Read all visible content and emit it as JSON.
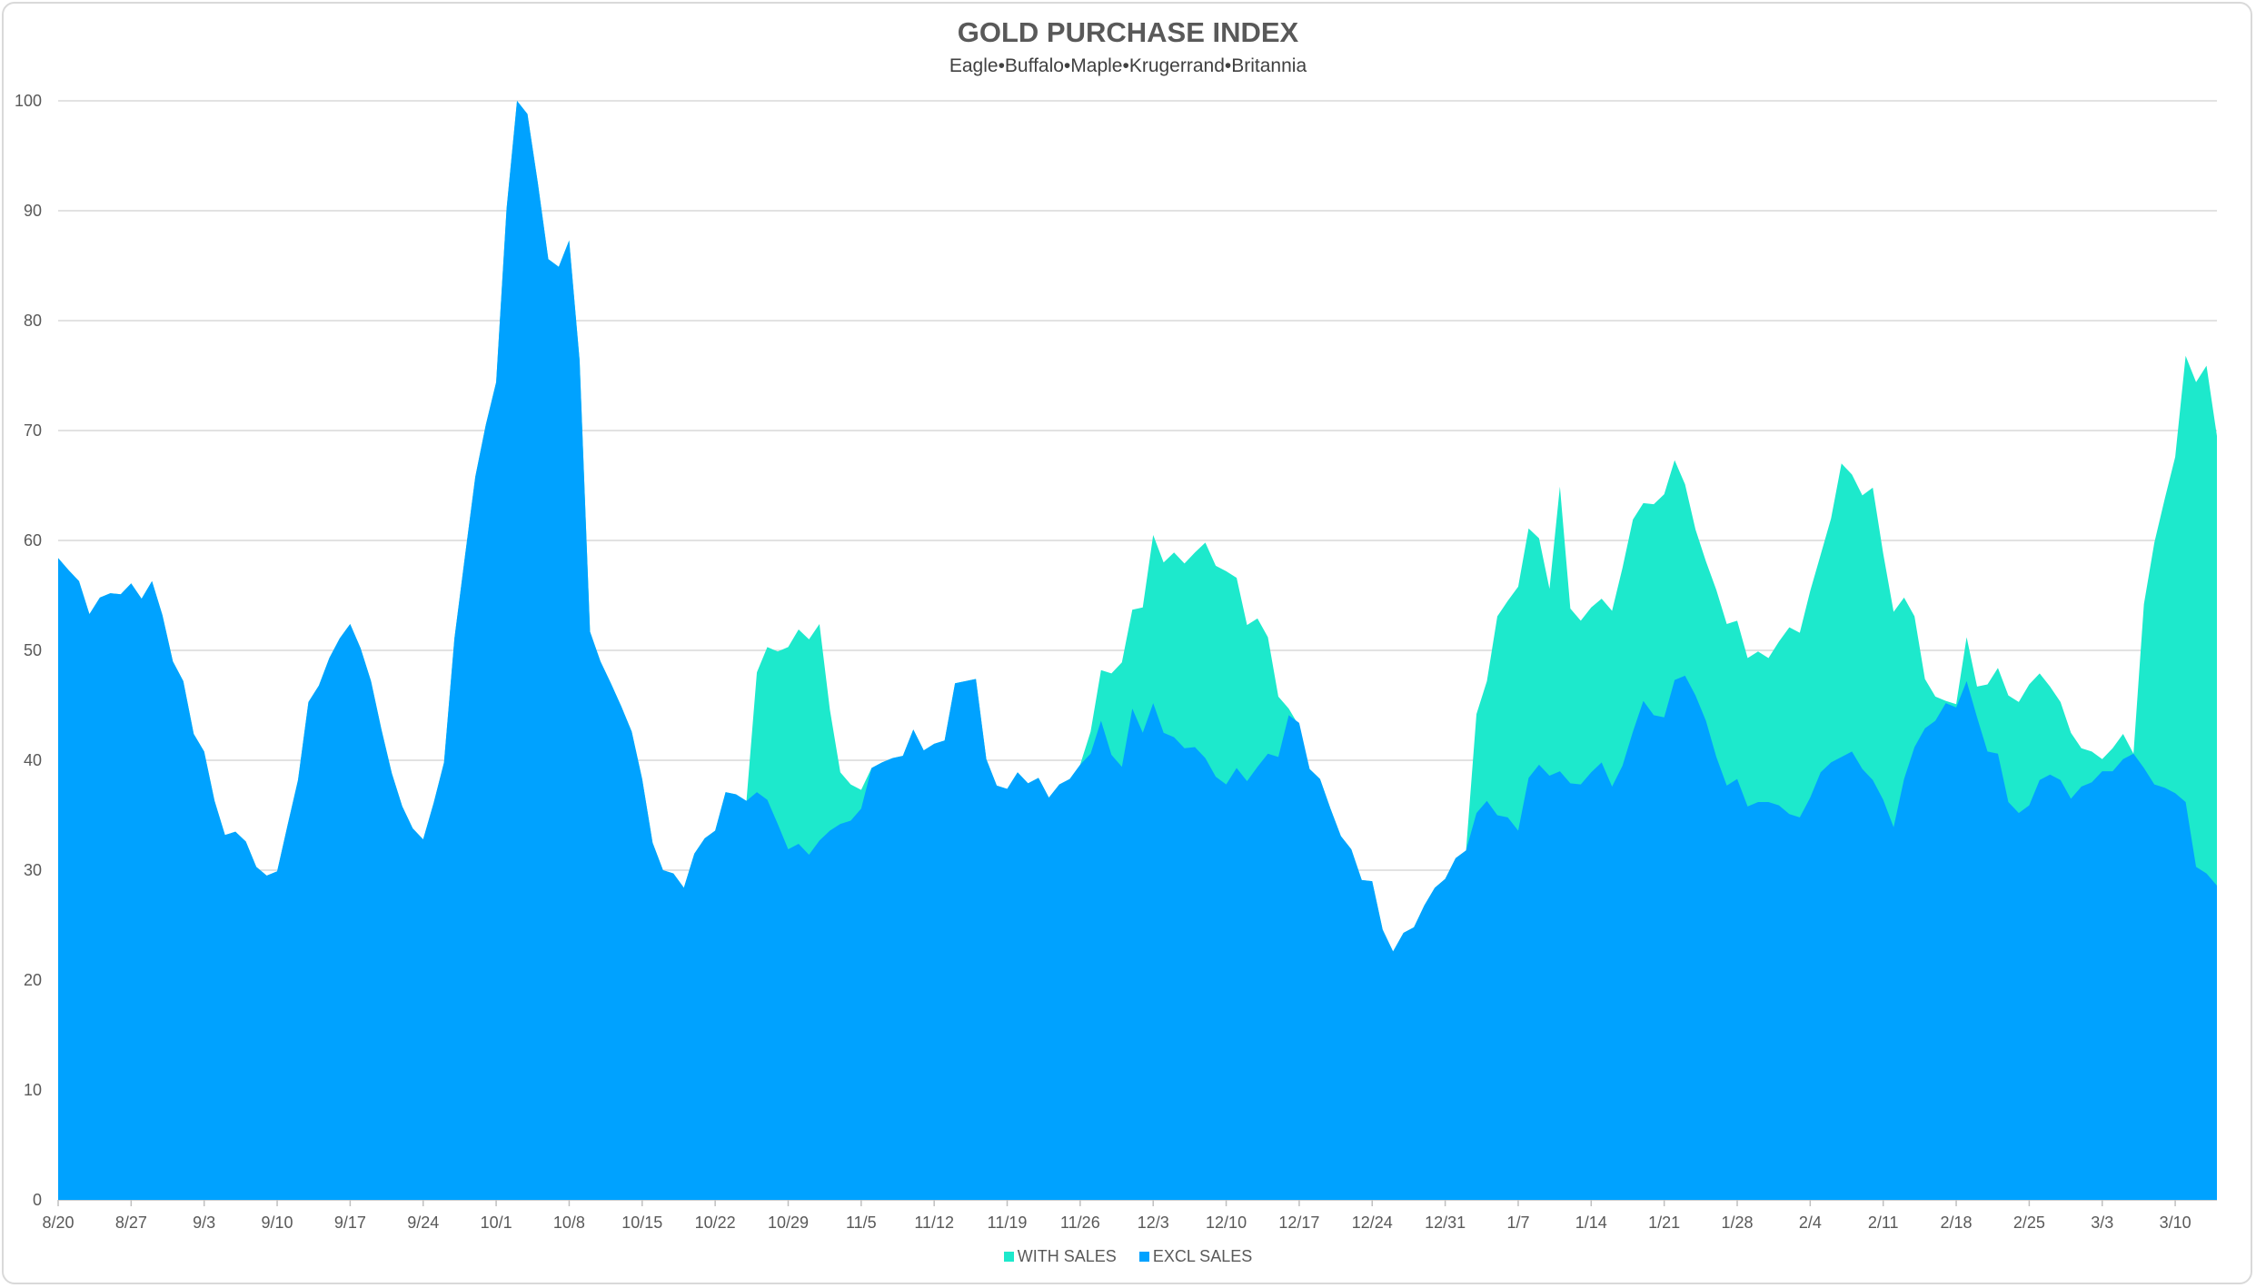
{
  "chart_data": {
    "type": "area",
    "title": "GOLD PURCHASE INDEX",
    "subtitle": "Eagle•Buffalo•Maple•Krugerrand•Britannia",
    "ylim": [
      0,
      100
    ],
    "y_ticks": [
      "0",
      "10",
      "20",
      "30",
      "40",
      "50",
      "60",
      "70",
      "80",
      "90",
      "100"
    ],
    "x_start": "8/20",
    "x_tick_labels": [
      "8/20",
      "8/27",
      "9/3",
      "9/10",
      "9/17",
      "9/24",
      "10/1",
      "10/8",
      "10/15",
      "10/22",
      "10/29",
      "11/5",
      "11/12",
      "11/19",
      "11/26",
      "12/3",
      "12/10",
      "12/17",
      "12/24",
      "12/31",
      "1/7",
      "1/14",
      "1/21",
      "1/28",
      "2/4",
      "2/11",
      "2/18",
      "2/25",
      "3/3",
      "3/10"
    ],
    "grid": true,
    "legend_position": "bottom",
    "series": [
      {
        "name": "WITH SALES",
        "color": "#1de9cc",
        "values": [
          58.4,
          57.3,
          56.3,
          53.3,
          54.8,
          55.2,
          55.1,
          56.1,
          54.7,
          56.3,
          53.2,
          49,
          47.2,
          42.4,
          40.8,
          36.3,
          33.2,
          33.5,
          32.6,
          30.3,
          29.5,
          29.9,
          34.1,
          38.2,
          45.3,
          46.8,
          49.3,
          51.1,
          52.4,
          50.2,
          47.2,
          42.8,
          38.8,
          35.8,
          33.8,
          32.8,
          36.1,
          39.8,
          51.1,
          58.5,
          65.8,
          70.5,
          74.4,
          90.2,
          100,
          98.8,
          92.5,
          85.6,
          84.9,
          87.3,
          76.4,
          51.7,
          49,
          47,
          44.9,
          42.6,
          38.3,
          32.5,
          30,
          29.7,
          28.4,
          31.5,
          32.9,
          33.6,
          37.1,
          36.9,
          36.3,
          48,
          50.3,
          49.9,
          50.3,
          51.9,
          51,
          52.4,
          44.6,
          38.9,
          37.8,
          37.3,
          39.3,
          39.8,
          40.2,
          40.4,
          42.8,
          40.9,
          41.5,
          41.8,
          47,
          47.2,
          47.4,
          40.1,
          37.7,
          37.4,
          38.9,
          37.9,
          38.4,
          36.6,
          37.8,
          38.3,
          39.6,
          42.6,
          48.2,
          47.9,
          48.9,
          53.7,
          53.9,
          60.5,
          58,
          58.9,
          57.9,
          58.9,
          59.8,
          57.7,
          57.2,
          56.6,
          52.3,
          52.9,
          51.2,
          45.8,
          44.7,
          43.1,
          39.2,
          38.3,
          35.6,
          33.1,
          31.9,
          29.1,
          29,
          24.6,
          22.6,
          24.3,
          24.8,
          26.8,
          28.4,
          29.2,
          31.1,
          31.8,
          44.2,
          47.2,
          53.1,
          54.5,
          55.8,
          61.1,
          60.2,
          55.6,
          64.9,
          53.8,
          52.7,
          53.9,
          54.7,
          53.6,
          57.5,
          61.9,
          63.4,
          63.3,
          64.2,
          67.3,
          65.1,
          61,
          58.1,
          55.5,
          52.4,
          52.7,
          49.3,
          49.9,
          49.3,
          50.8,
          52.1,
          51.6,
          55.4,
          58.7,
          62,
          67,
          66,
          64.1,
          64.8,
          58.8,
          53.5,
          54.8,
          53.1,
          47.4,
          45.8,
          45.4,
          45.1,
          51.2,
          46.7,
          46.9,
          48.4,
          45.9,
          45.3,
          46.9,
          47.9,
          46.7,
          45.3,
          42.5,
          41.1,
          40.8,
          40.1,
          41.1,
          42.4,
          40.6,
          54.2,
          59.8,
          63.8,
          67.6,
          76.8,
          74.4,
          75.9,
          69.5
        ]
      },
      {
        "name": "EXCL SALES",
        "color": "#00a2ff",
        "values": [
          58.4,
          57.3,
          56.3,
          53.3,
          54.8,
          55.2,
          55.1,
          56.1,
          54.7,
          56.3,
          53.2,
          49,
          47.2,
          42.4,
          40.8,
          36.3,
          33.2,
          33.5,
          32.6,
          30.3,
          29.5,
          29.9,
          34.1,
          38.2,
          45.3,
          46.8,
          49.3,
          51.1,
          52.4,
          50.2,
          47.2,
          42.8,
          38.8,
          35.8,
          33.8,
          32.8,
          36.1,
          39.8,
          51.1,
          58.5,
          65.8,
          70.5,
          74.4,
          90.2,
          100,
          98.8,
          92.5,
          85.6,
          84.9,
          87.3,
          76.4,
          51.7,
          49,
          47,
          44.9,
          42.6,
          38.3,
          32.5,
          30,
          29.7,
          28.4,
          31.5,
          32.9,
          33.6,
          37.1,
          36.9,
          36.3,
          37.1,
          36.4,
          34.2,
          31.9,
          32.4,
          31.4,
          32.7,
          33.6,
          34.2,
          34.5,
          35.6,
          39.3,
          39.8,
          40.2,
          40.4,
          42.8,
          40.9,
          41.5,
          41.8,
          47,
          47.2,
          47.4,
          40.1,
          37.7,
          37.4,
          38.9,
          37.9,
          38.4,
          36.6,
          37.8,
          38.3,
          39.6,
          40.6,
          43.6,
          40.5,
          39.4,
          44.7,
          42.5,
          45.2,
          42.5,
          42.1,
          41.1,
          41.2,
          40.2,
          38.5,
          37.8,
          39.3,
          38.1,
          39.4,
          40.6,
          40.3,
          44.1,
          43.4,
          39.2,
          38.3,
          35.6,
          33.1,
          31.9,
          29.1,
          29,
          24.6,
          22.6,
          24.3,
          24.8,
          26.8,
          28.4,
          29.2,
          31.1,
          31.8,
          35.2,
          36.3,
          35,
          34.8,
          33.6,
          38.4,
          39.6,
          38.6,
          39,
          37.9,
          37.8,
          38.9,
          39.8,
          37.6,
          39.5,
          42.6,
          45.4,
          44.1,
          43.9,
          47.3,
          47.7,
          45.9,
          43.6,
          40.3,
          37.7,
          38.3,
          35.8,
          36.2,
          36.2,
          35.9,
          35.1,
          34.8,
          36.6,
          38.9,
          39.8,
          40.3,
          40.8,
          39.2,
          38.2,
          36.4,
          33.9,
          38.3,
          41.2,
          42.9,
          43.6,
          45.2,
          44.8,
          47.2,
          43.9,
          40.8,
          40.6,
          36.2,
          35.2,
          35.9,
          38.2,
          38.7,
          38.2,
          36.5,
          37.6,
          38,
          39,
          39,
          40.1,
          40.6,
          39.3,
          37.8,
          37.5,
          37,
          36.2,
          30.3,
          29.7,
          28.6
        ]
      }
    ]
  }
}
